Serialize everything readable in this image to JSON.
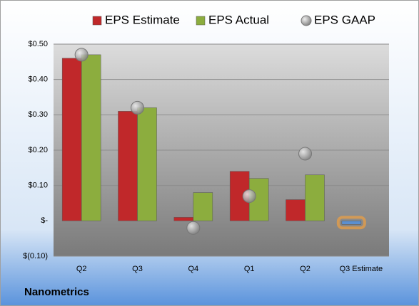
{
  "chart_data": {
    "type": "bar",
    "categories": [
      "Q2",
      "Q3",
      "Q4",
      "Q1",
      "Q2",
      "Q3 Estimate"
    ],
    "series": [
      {
        "name": "EPS Estimate",
        "color": "#c0282a",
        "colors": [
          "#c0282a",
          "#c0282a",
          "#c0282a",
          "#c0282a",
          "#c0282a",
          "#5b8fd0"
        ],
        "values": [
          0.46,
          0.31,
          0.01,
          0.14,
          0.06,
          -0.01
        ]
      },
      {
        "name": "EPS Actual",
        "color": "#8cad3e",
        "values": [
          0.47,
          0.32,
          0.08,
          0.12,
          0.13,
          null
        ]
      },
      {
        "name": "EPS GAAP",
        "color": "#9a9a9a",
        "type": "scatter",
        "values": [
          0.47,
          0.32,
          -0.02,
          0.07,
          0.19,
          null
        ]
      }
    ],
    "ylim": [
      -0.1,
      0.5
    ],
    "yticks": [
      {
        "value": -0.1,
        "label": "$(0.10)"
      },
      {
        "value": 0,
        "label": "$-"
      },
      {
        "value": 0.1,
        "label": "$0.10"
      },
      {
        "value": 0.2,
        "label": "$0.20"
      },
      {
        "value": 0.3,
        "label": "$0.30"
      },
      {
        "value": 0.4,
        "label": "$0.40"
      },
      {
        "value": 0.5,
        "label": "$0.50"
      }
    ],
    "grid": true,
    "legend": "top",
    "footer": "Nanometrics"
  }
}
